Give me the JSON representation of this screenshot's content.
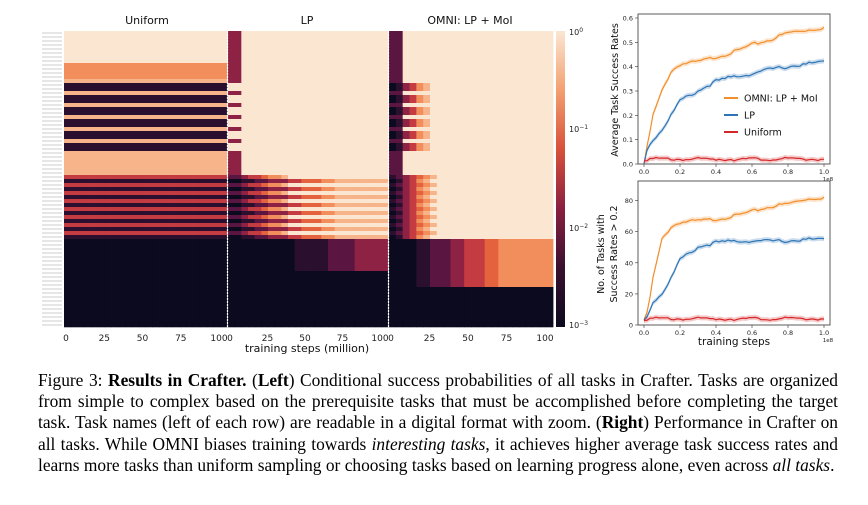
{
  "figure": {
    "heatmap": {
      "panel_titles": [
        "Uniform",
        "LP",
        "OMNI: LP + MoI"
      ],
      "x_ticks": [
        "0",
        "25",
        "50",
        "75",
        "100"
      ],
      "x_label": "training steps (million)",
      "colorbar_ticks": [
        "10^0",
        "10^-1",
        "10^-2",
        "10^-3"
      ]
    },
    "colors": {
      "omni": "#f28e2b",
      "lp": "#2e75b6",
      "uniform": "#d62728",
      "heat_low": "#0b0a1f",
      "heat_high": "#fbe6d2"
    }
  },
  "chart_data": [
    {
      "type": "line",
      "ylabel": "Average Task Success Rates",
      "xlabel": "",
      "x_ticks": [
        "0.0",
        "0.2",
        "0.4",
        "0.6",
        "0.8",
        "1.0"
      ],
      "x_scale_label": "1e8",
      "y_ticks": [
        "0.0",
        "0.1",
        "0.2",
        "0.3",
        "0.4",
        "0.5",
        "0.6"
      ],
      "ylim": [
        0,
        0.6
      ],
      "xlim": [
        0,
        1.0
      ],
      "legend": [
        "OMNI: LP + MoI",
        "LP",
        "Uniform"
      ],
      "legend_position": "center-right",
      "x": [
        0,
        0.02,
        0.05,
        0.1,
        0.15,
        0.2,
        0.3,
        0.4,
        0.5,
        0.6,
        0.7,
        0.8,
        0.9,
        1.0
      ],
      "series": [
        {
          "name": "OMNI: LP + MoI",
          "values": [
            0.0,
            0.08,
            0.2,
            0.3,
            0.38,
            0.41,
            0.42,
            0.44,
            0.46,
            0.49,
            0.51,
            0.54,
            0.55,
            0.56
          ]
        },
        {
          "name": "LP",
          "values": [
            0.0,
            0.07,
            0.1,
            0.14,
            0.2,
            0.26,
            0.3,
            0.34,
            0.36,
            0.37,
            0.39,
            0.4,
            0.41,
            0.42
          ]
        },
        {
          "name": "Uniform",
          "values": [
            0.02,
            0.02,
            0.02,
            0.02,
            0.02,
            0.02,
            0.02,
            0.02,
            0.02,
            0.02,
            0.02,
            0.02,
            0.02,
            0.02
          ]
        }
      ]
    },
    {
      "type": "line",
      "ylabel_line1": "No. of Tasks with",
      "ylabel_line2": "Success Rates > 0.2",
      "xlabel": "training steps",
      "x_ticks": [
        "0.0",
        "0.2",
        "0.4",
        "0.6",
        "0.8",
        "1.0"
      ],
      "x_scale_label": "1e8",
      "y_ticks": [
        "0",
        "20",
        "40",
        "60",
        "80"
      ],
      "ylim": [
        0,
        90
      ],
      "xlim": [
        0,
        1.0
      ],
      "x": [
        0,
        0.02,
        0.05,
        0.1,
        0.15,
        0.2,
        0.3,
        0.4,
        0.5,
        0.6,
        0.7,
        0.8,
        0.9,
        1.0
      ],
      "series": [
        {
          "name": "OMNI: LP + MoI",
          "values": [
            3,
            8,
            30,
            55,
            63,
            66,
            67,
            68,
            70,
            73,
            76,
            78,
            81,
            82
          ]
        },
        {
          "name": "LP",
          "values": [
            3,
            6,
            15,
            20,
            30,
            42,
            50,
            53,
            54,
            54,
            54,
            54,
            55,
            55
          ]
        },
        {
          "name": "Uniform",
          "values": [
            4,
            4,
            4,
            4,
            4,
            4,
            4,
            4,
            4,
            4,
            4,
            4,
            4,
            4
          ]
        }
      ]
    }
  ],
  "caption": {
    "fig_label": "Figure 3:",
    "bold_title": "Results in Crafter.",
    "left_open": "(",
    "left_word": "Left",
    "left_close": ")",
    "text1": " Conditional success probabilities of all tasks in Crafter. Tasks are organized from simple to complex based on the prerequisite tasks that must be accomplished before completing the target task. Task names (left of each row) are readable in a digital format with zoom. (",
    "right_word": "Right",
    "text2": ") Performance in Crafter on all tasks. While OMNI biases training towards ",
    "italic1": "interesting tasks",
    "text3": ", it achieves higher average task success rates and learns more tasks than uniform sampling or choosing tasks based on learning progress alone, even across ",
    "italic2": "all tasks",
    "text4": "."
  }
}
